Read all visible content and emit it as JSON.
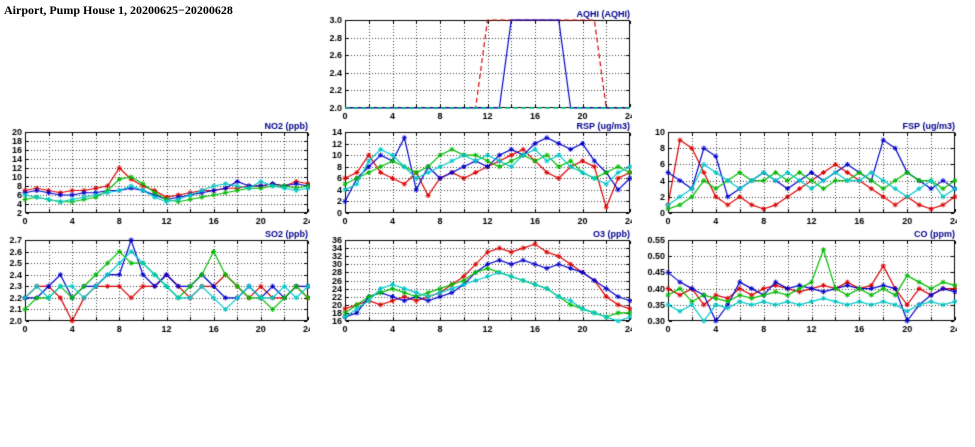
{
  "page_title": "Airport, Pump House 1, 20200625−20200628",
  "colors": {
    "red": "#dd0000",
    "blue": "#0000cc",
    "green": "#00bb00",
    "cyan": "#00c8c8",
    "chart_title": "#00008b",
    "axis": "#000000"
  },
  "chart_data": [
    {
      "id": "aqhi",
      "type": "line",
      "title": "AQHI (AQHI)",
      "xlim": [
        0,
        24
      ],
      "x_tick_step": 4,
      "x_grid_step": 2,
      "ylim": [
        2.0,
        3.0
      ],
      "y_tick_step": 0.2,
      "y_decimals": 1,
      "markers": false,
      "grid": true,
      "legend": "none",
      "series": [
        {
          "name": "red",
          "color": "#dd0000",
          "dashed": true,
          "values": [
            2,
            2,
            2,
            2,
            2,
            2,
            2,
            2,
            2,
            2,
            2,
            2,
            3,
            3,
            3,
            3,
            3,
            3,
            3,
            3,
            3,
            3,
            2,
            2,
            2
          ]
        },
        {
          "name": "blue",
          "color": "#0000cc",
          "dashed": false,
          "values": [
            2,
            2,
            2,
            2,
            2,
            2,
            2,
            2,
            2,
            2,
            2,
            2,
            2,
            2,
            3,
            3,
            3,
            3,
            3,
            2,
            2,
            2,
            2,
            2,
            2
          ]
        },
        {
          "name": "green",
          "color": "#00bb00",
          "dashed": true,
          "values": [
            2,
            2,
            2,
            2,
            2,
            2,
            2,
            2,
            2,
            2,
            2,
            2,
            2,
            2,
            2,
            2,
            2,
            2,
            2,
            2,
            2,
            2,
            2,
            2,
            2
          ]
        },
        {
          "name": "cyan",
          "color": "#00c8c8",
          "dashed": true,
          "values": [
            2,
            2,
            2,
            2,
            2,
            2,
            2,
            2,
            2,
            2,
            2,
            2,
            2,
            2,
            2,
            2,
            2,
            2,
            2,
            2,
            2,
            2,
            2,
            2,
            2
          ]
        }
      ]
    },
    {
      "id": "no2",
      "type": "line",
      "title": "NO2 (ppb)",
      "xlim": [
        0,
        24
      ],
      "x_tick_step": 4,
      "x_grid_step": 2,
      "ylim": [
        2,
        20
      ],
      "y_tick_step": 2,
      "y_decimals": 0,
      "markers": true,
      "grid": true,
      "legend": "none",
      "series": [
        {
          "name": "red",
          "color": "#dd0000",
          "dashed": false,
          "values": [
            7,
            7.5,
            7,
            6.5,
            7,
            7,
            7.5,
            8,
            12,
            9.5,
            8,
            7,
            5.5,
            6,
            6.5,
            7,
            7,
            7.5,
            7.5,
            8,
            8,
            8.5,
            8,
            9,
            8.5
          ]
        },
        {
          "name": "blue",
          "color": "#0000cc",
          "dashed": false,
          "values": [
            6.5,
            7,
            6.5,
            6,
            6,
            6.5,
            6.5,
            7,
            7,
            7.5,
            7,
            6,
            5,
            5.5,
            6,
            6.5,
            7,
            7.5,
            9,
            8,
            8,
            8.5,
            8,
            8.5,
            8
          ]
        },
        {
          "name": "green",
          "color": "#00bb00",
          "dashed": false,
          "values": [
            5,
            5.5,
            5,
            4.5,
            4.5,
            5,
            5.5,
            7,
            9.5,
            10,
            8.5,
            6.5,
            5,
            4.5,
            5,
            5.5,
            6,
            6.5,
            7,
            7.5,
            7.5,
            8,
            8,
            7.5,
            8
          ]
        },
        {
          "name": "cyan",
          "color": "#00c8c8",
          "dashed": false,
          "values": [
            6,
            5.5,
            5,
            4.5,
            5,
            5.5,
            6,
            6.5,
            7,
            8,
            7,
            5.5,
            4.5,
            5,
            6,
            7,
            8,
            8.5,
            8,
            7.5,
            9,
            8,
            7.5,
            7,
            7.5
          ]
        }
      ]
    },
    {
      "id": "rsp",
      "type": "line",
      "title": "RSP (ug/m3)",
      "xlim": [
        0,
        24
      ],
      "x_tick_step": 4,
      "x_grid_step": 2,
      "ylim": [
        0,
        14
      ],
      "y_tick_step": 2,
      "y_decimals": 0,
      "markers": true,
      "grid": true,
      "legend": "none",
      "series": [
        {
          "name": "red",
          "color": "#dd0000",
          "dashed": false,
          "values": [
            6,
            7,
            10,
            7,
            6,
            5,
            7,
            3,
            6,
            7,
            6,
            7,
            8,
            9,
            10,
            11,
            9,
            7,
            6,
            8,
            9,
            8,
            1,
            6,
            7
          ]
        },
        {
          "name": "blue",
          "color": "#0000cc",
          "dashed": false,
          "values": [
            2,
            6,
            8,
            10,
            9,
            13,
            4,
            8,
            6,
            7,
            8,
            9,
            8,
            10,
            11,
            10,
            12,
            13,
            12,
            11,
            12,
            9,
            7,
            4,
            6
          ]
        },
        {
          "name": "green",
          "color": "#00bb00",
          "dashed": false,
          "values": [
            5,
            6,
            7,
            8,
            9,
            8,
            7,
            8,
            10,
            11,
            10,
            10,
            9,
            8,
            9,
            10,
            9,
            10,
            8,
            9,
            7,
            6,
            7,
            8,
            7
          ]
        },
        {
          "name": "cyan",
          "color": "#00c8c8",
          "dashed": false,
          "values": [
            4,
            5,
            9,
            11,
            10,
            8,
            6,
            7,
            8,
            9,
            10,
            9,
            10,
            9,
            8,
            10,
            11,
            9,
            10,
            8,
            7,
            6,
            5,
            7,
            8
          ]
        }
      ]
    },
    {
      "id": "fsp",
      "type": "line",
      "title": "FSP (ug/m3)",
      "xlim": [
        0,
        24
      ],
      "x_tick_step": 4,
      "x_grid_step": 2,
      "ylim": [
        0,
        10
      ],
      "y_tick_step": 2,
      "y_decimals": 0,
      "markers": true,
      "grid": true,
      "legend": "none",
      "series": [
        {
          "name": "red",
          "color": "#dd0000",
          "dashed": false,
          "values": [
            1,
            9,
            8,
            5,
            2,
            1,
            2,
            1,
            0.5,
            1,
            2,
            3,
            4,
            5,
            6,
            5,
            4,
            3,
            2,
            1,
            2,
            1,
            0.5,
            1,
            2
          ]
        },
        {
          "name": "blue",
          "color": "#0000cc",
          "dashed": false,
          "values": [
            5,
            4,
            3,
            8,
            7,
            2,
            3,
            4,
            5,
            4,
            3,
            4,
            5,
            4,
            5,
            6,
            5,
            4,
            9,
            8,
            5,
            4,
            3,
            4,
            3
          ]
        },
        {
          "name": "green",
          "color": "#00bb00",
          "dashed": false,
          "values": [
            0.5,
            1,
            2,
            4,
            3,
            4,
            5,
            4,
            4,
            5,
            4,
            5,
            4,
            3,
            4,
            4,
            5,
            4,
            3,
            4,
            5,
            4,
            4,
            3,
            4
          ]
        },
        {
          "name": "cyan",
          "color": "#00c8c8",
          "dashed": false,
          "values": [
            1,
            2,
            3,
            6,
            5,
            4,
            3,
            4,
            5,
            4,
            5,
            4,
            3,
            4,
            5,
            4,
            4,
            5,
            4,
            3,
            2,
            3,
            4,
            2,
            3
          ]
        }
      ]
    },
    {
      "id": "so2",
      "type": "line",
      "title": "SO2 (ppb)",
      "xlim": [
        0,
        24
      ],
      "x_tick_step": 4,
      "x_grid_step": 2,
      "ylim": [
        2.0,
        2.7
      ],
      "y_tick_step": 0.1,
      "y_decimals": 1,
      "markers": true,
      "grid": true,
      "legend": "none",
      "series": [
        {
          "name": "red",
          "color": "#dd0000",
          "dashed": false,
          "values": [
            2.2,
            2.3,
            2.3,
            2.2,
            2.0,
            2.2,
            2.3,
            2.3,
            2.3,
            2.2,
            2.3,
            2.3,
            2.4,
            2.3,
            2.2,
            2.3,
            2.3,
            2.4,
            2.3,
            2.2,
            2.3,
            2.2,
            2.2,
            2.3,
            2.2
          ]
        },
        {
          "name": "blue",
          "color": "#0000cc",
          "dashed": false,
          "values": [
            2.2,
            2.2,
            2.3,
            2.4,
            2.2,
            2.3,
            2.3,
            2.4,
            2.4,
            2.7,
            2.4,
            2.3,
            2.4,
            2.3,
            2.3,
            2.4,
            2.3,
            2.2,
            2.2,
            2.3,
            2.2,
            2.3,
            2.2,
            2.3,
            2.3
          ]
        },
        {
          "name": "green",
          "color": "#00bb00",
          "dashed": false,
          "values": [
            2.1,
            2.2,
            2.2,
            2.3,
            2.2,
            2.3,
            2.4,
            2.5,
            2.6,
            2.5,
            2.5,
            2.4,
            2.3,
            2.2,
            2.3,
            2.4,
            2.6,
            2.4,
            2.3,
            2.2,
            2.2,
            2.1,
            2.2,
            2.3,
            2.2
          ]
        },
        {
          "name": "cyan",
          "color": "#00c8c8",
          "dashed": false,
          "values": [
            2.2,
            2.3,
            2.2,
            2.3,
            2.3,
            2.2,
            2.3,
            2.4,
            2.5,
            2.6,
            2.5,
            2.4,
            2.3,
            2.2,
            2.2,
            2.3,
            2.2,
            2.1,
            2.2,
            2.3,
            2.2,
            2.2,
            2.3,
            2.2,
            2.3
          ]
        }
      ]
    },
    {
      "id": "o3",
      "type": "line",
      "title": "O3 (ppb)",
      "xlim": [
        0,
        24
      ],
      "x_tick_step": 4,
      "x_grid_step": 2,
      "ylim": [
        16,
        36
      ],
      "y_tick_step": 2,
      "y_decimals": 0,
      "markers": true,
      "grid": true,
      "legend": "none",
      "series": [
        {
          "name": "red",
          "color": "#dd0000",
          "dashed": false,
          "values": [
            19,
            20,
            21,
            20,
            21,
            22,
            21,
            22,
            23,
            25,
            27,
            30,
            33,
            34,
            33,
            34,
            35,
            33,
            32,
            30,
            28,
            26,
            22,
            20,
            19
          ]
        },
        {
          "name": "blue",
          "color": "#0000cc",
          "dashed": false,
          "values": [
            17,
            18,
            22,
            23,
            22,
            21,
            22,
            21,
            22,
            23,
            25,
            28,
            30,
            31,
            30,
            31,
            30,
            29,
            30,
            29,
            28,
            26,
            24,
            22,
            21
          ]
        },
        {
          "name": "green",
          "color": "#00bb00",
          "dashed": false,
          "values": [
            18,
            20,
            22,
            23,
            24,
            23,
            22,
            23,
            24,
            25,
            26,
            28,
            29,
            28,
            27,
            26,
            25,
            24,
            22,
            20,
            19,
            18,
            17,
            18,
            18
          ]
        },
        {
          "name": "cyan",
          "color": "#00c8c8",
          "dashed": false,
          "values": [
            17,
            19,
            21,
            24,
            25,
            24,
            23,
            22,
            23,
            24,
            25,
            26,
            27,
            28,
            27,
            26,
            25,
            24,
            22,
            21,
            19,
            18,
            17,
            16,
            17
          ]
        }
      ]
    },
    {
      "id": "co",
      "type": "line",
      "title": "CO (ppm)",
      "xlim": [
        0,
        24
      ],
      "x_tick_step": 4,
      "x_grid_step": 2,
      "ylim": [
        0.3,
        0.55
      ],
      "y_tick_step": 0.05,
      "y_decimals": 2,
      "markers": true,
      "grid": true,
      "legend": "none",
      "series": [
        {
          "name": "red",
          "color": "#dd0000",
          "dashed": false,
          "values": [
            0.4,
            0.38,
            0.4,
            0.35,
            0.38,
            0.37,
            0.4,
            0.38,
            0.4,
            0.41,
            0.4,
            0.39,
            0.4,
            0.41,
            0.4,
            0.42,
            0.4,
            0.41,
            0.47,
            0.4,
            0.35,
            0.4,
            0.38,
            0.4,
            0.4
          ]
        },
        {
          "name": "blue",
          "color": "#0000cc",
          "dashed": false,
          "values": [
            0.45,
            0.42,
            0.4,
            0.38,
            0.3,
            0.35,
            0.42,
            0.4,
            0.38,
            0.42,
            0.4,
            0.41,
            0.4,
            0.39,
            0.4,
            0.41,
            0.4,
            0.4,
            0.41,
            0.4,
            0.3,
            0.35,
            0.38,
            0.4,
            0.39
          ]
        },
        {
          "name": "green",
          "color": "#00bb00",
          "dashed": false,
          "values": [
            0.38,
            0.4,
            0.36,
            0.38,
            0.37,
            0.36,
            0.38,
            0.37,
            0.38,
            0.39,
            0.38,
            0.4,
            0.42,
            0.52,
            0.4,
            0.38,
            0.4,
            0.38,
            0.4,
            0.38,
            0.44,
            0.42,
            0.4,
            0.42,
            0.41
          ]
        },
        {
          "name": "cyan",
          "color": "#00c8c8",
          "dashed": false,
          "values": [
            0.35,
            0.33,
            0.35,
            0.3,
            0.35,
            0.34,
            0.36,
            0.35,
            0.36,
            0.35,
            0.36,
            0.35,
            0.36,
            0.37,
            0.36,
            0.35,
            0.36,
            0.35,
            0.36,
            0.35,
            0.33,
            0.35,
            0.36,
            0.35,
            0.36
          ]
        }
      ]
    }
  ]
}
